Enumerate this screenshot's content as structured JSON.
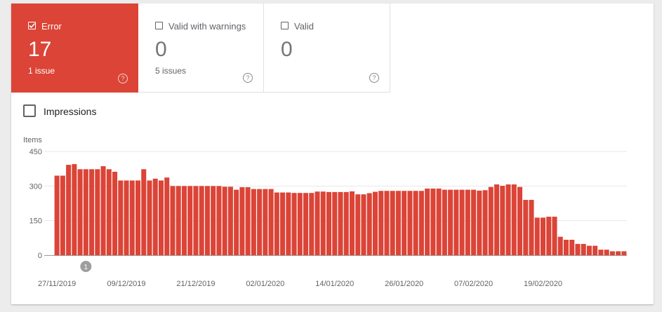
{
  "tiles": {
    "error": {
      "label": "Error",
      "value": "17",
      "sub": "1 issue",
      "checked": true
    },
    "warnings": {
      "label": "Valid with warnings",
      "value": "0",
      "sub": "5 issues",
      "checked": false
    },
    "valid": {
      "label": "Valid",
      "value": "0",
      "sub": "",
      "checked": false
    },
    "help_glyph": "?"
  },
  "impressions": {
    "label": "Impressions",
    "checked": false
  },
  "chart_data": {
    "type": "bar",
    "ylabel": "Items",
    "ylim": [
      0,
      450
    ],
    "yticks": [
      0,
      150,
      300,
      450
    ],
    "xlabels": [
      "27/11/2019",
      "09/12/2019",
      "21/12/2019",
      "02/01/2020",
      "14/01/2020",
      "26/01/2020",
      "07/02/2020",
      "19/02/2020"
    ],
    "start_date": "2019-11-27",
    "bar_color": "#db4437",
    "annotation": {
      "label": "1",
      "date": "2019-12-02"
    },
    "values": [
      345,
      345,
      392,
      395,
      373,
      373,
      373,
      373,
      386,
      373,
      362,
      324,
      324,
      324,
      324,
      373,
      324,
      332,
      324,
      337,
      300,
      300,
      300,
      300,
      300,
      300,
      300,
      300,
      300,
      297,
      297,
      284,
      295,
      295,
      287,
      287,
      287,
      287,
      272,
      272,
      272,
      270,
      270,
      270,
      270,
      276,
      276,
      274,
      274,
      274,
      274,
      277,
      264,
      264,
      269,
      275,
      279,
      279,
      279,
      279,
      279,
      279,
      279,
      279,
      289,
      289,
      289,
      284,
      284,
      284,
      284,
      284,
      284,
      280,
      282,
      296,
      307,
      301,
      307,
      307,
      296,
      240,
      240,
      163,
      163,
      167,
      167,
      80,
      67,
      67,
      49,
      49,
      41,
      41,
      24,
      24,
      17,
      17,
      17
    ]
  }
}
